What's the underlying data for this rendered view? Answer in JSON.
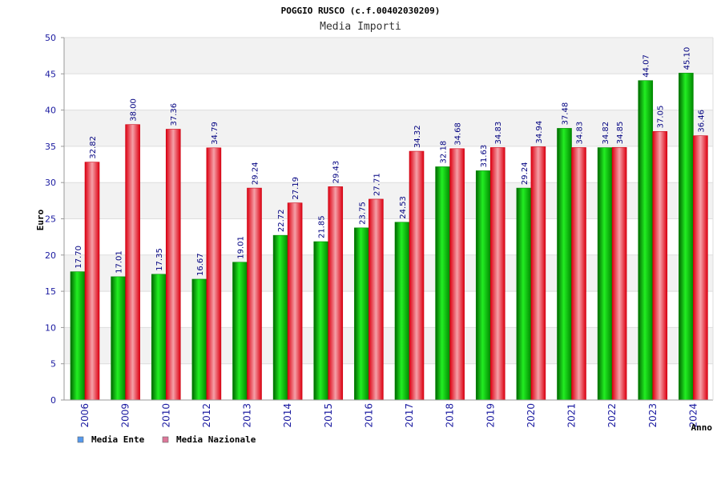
{
  "chart_data": {
    "type": "bar",
    "title": "POGGIO RUSCO (c.f.00402030209)",
    "subtitle": "Media Importi",
    "ylabel": "Euro",
    "xlabel": "Anno",
    "ylim": [
      0,
      50
    ],
    "yticks": [
      0,
      5,
      10,
      15,
      20,
      25,
      30,
      35,
      40,
      45,
      50
    ],
    "grid": true,
    "legend_position": "bottom-left",
    "categories": [
      "2006",
      "2009",
      "2010",
      "2012",
      "2013",
      "2014",
      "2015",
      "2016",
      "2017",
      "2018",
      "2019",
      "2020",
      "2021",
      "2022",
      "2023",
      "2024"
    ],
    "series": [
      {
        "name": "Media Ente",
        "color": "#00c000",
        "legend_color": "#5599ee",
        "values": [
          17.7,
          17.01,
          17.35,
          16.67,
          19.01,
          22.72,
          21.85,
          23.75,
          24.53,
          32.18,
          31.63,
          29.24,
          37.48,
          34.82,
          44.07,
          45.1
        ],
        "labels": [
          "17.70",
          "17.01",
          "17.35",
          "16.67",
          "19.01",
          "22.72",
          "21.85",
          "23.75",
          "24.53",
          "32.18",
          "31.63",
          "29.24",
          "37.48",
          "34.82",
          "44.07",
          "45.10"
        ]
      },
      {
        "name": "Media Nazionale",
        "color": "#ee1122",
        "legend_color": "#dd7799",
        "values": [
          32.82,
          38.0,
          37.36,
          34.79,
          29.24,
          27.19,
          29.43,
          27.71,
          34.32,
          34.68,
          34.83,
          34.94,
          34.83,
          34.85,
          37.05,
          36.46
        ],
        "labels": [
          "32.82",
          "38.00",
          "37.36",
          "34.79",
          "29.24",
          "27.19",
          "29.43",
          "27.71",
          "34.32",
          "34.68",
          "34.83",
          "34.94",
          "34.83",
          "34.85",
          "37.05",
          "36.46"
        ]
      }
    ]
  }
}
